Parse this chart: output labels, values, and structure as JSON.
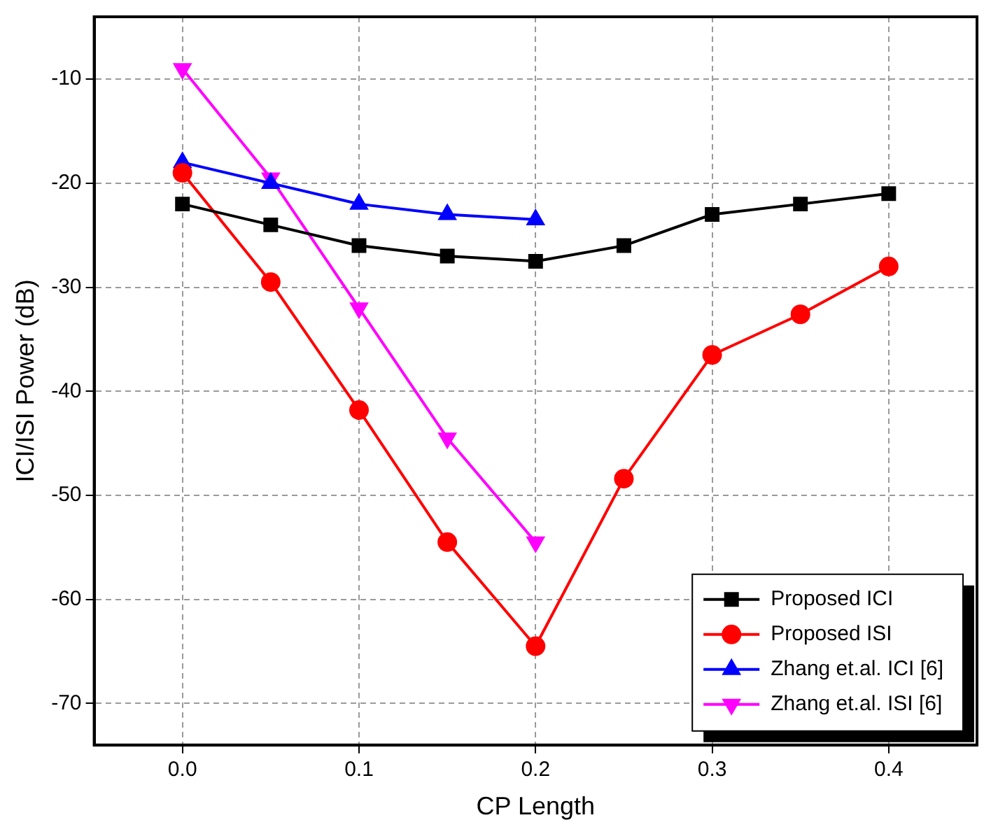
{
  "chart_data": {
    "type": "line",
    "xlabel": "CP Length",
    "ylabel": "ICI/ISI Power (dB)",
    "x": [
      0,
      0.05,
      0.1,
      0.15,
      0.2,
      0.25,
      0.3,
      0.35,
      0.4
    ],
    "series": [
      {
        "name": "Proposed ICI",
        "color": "#000000",
        "marker": "square",
        "values": [
          -22,
          -24,
          -26,
          -27,
          -27.5,
          -26,
          -23,
          -22,
          -21
        ]
      },
      {
        "name": "Proposed ISI",
        "color": "#ff0000",
        "marker": "circle",
        "values": [
          -19,
          -29.5,
          -41.8,
          -54.5,
          -64.5,
          -48.4,
          -36.5,
          -32.6,
          -28
        ]
      },
      {
        "name": "Zhang et.al. ICI [6]",
        "color": "#0000ff",
        "marker": "triangle",
        "values": [
          -18,
          -20,
          -22,
          -23,
          -23.5,
          null,
          null,
          null,
          null
        ]
      },
      {
        "name": "Zhang et.al. ISI [6]",
        "color": "#ff00ff",
        "marker": "triangle-down",
        "values": [
          -9,
          -19.5,
          -32,
          -44.5,
          -54.5,
          null,
          null,
          null,
          null
        ]
      }
    ],
    "xlim": [
      -0.05,
      0.45
    ],
    "xticks": [
      {
        "value": 0,
        "label": "0.0"
      },
      0.1,
      0.2,
      0.3,
      0.4
    ],
    "ylim": [
      -74,
      -4
    ],
    "yticks": [
      -70,
      -60,
      -50,
      -40,
      -30,
      -20,
      -10
    ],
    "grid": true,
    "legend": "bottom right",
    "line_style": "solid"
  }
}
